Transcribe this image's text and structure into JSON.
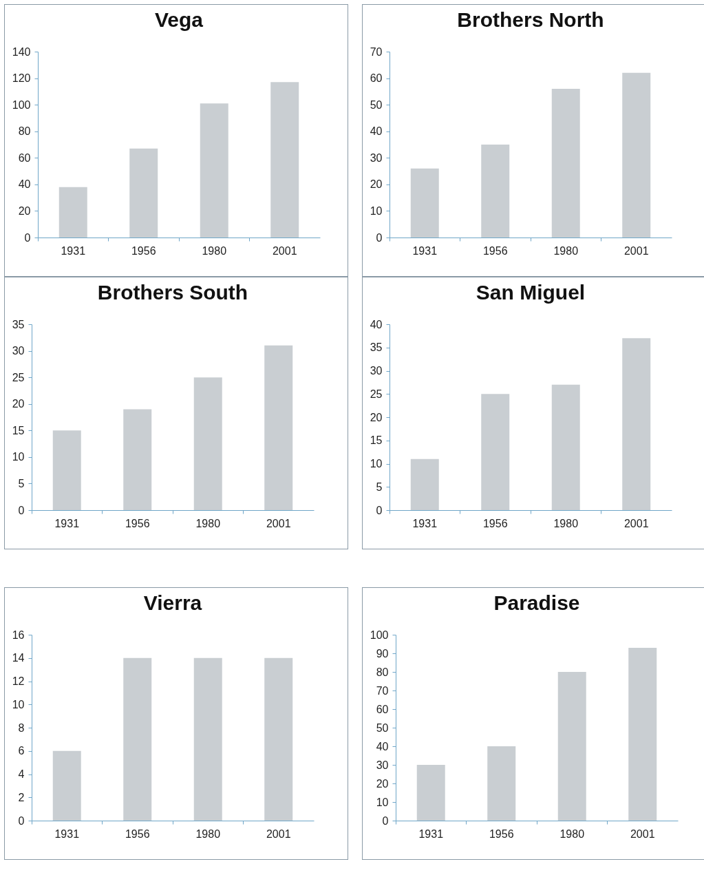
{
  "chart_data": [
    {
      "type": "bar",
      "title": "Vega",
      "categories": [
        "1931",
        "1956",
        "1980",
        "2001"
      ],
      "values": [
        38,
        67,
        101,
        117
      ],
      "color": "#c9ced2",
      "ylim": [
        0,
        140
      ],
      "yticks": [
        0,
        20,
        40,
        60,
        80,
        100,
        120,
        140
      ]
    },
    {
      "type": "bar",
      "title": "Brothers North",
      "categories": [
        "1931",
        "1956",
        "1980",
        "2001"
      ],
      "values": [
        26,
        35,
        56,
        62
      ],
      "color": "#c9ced2",
      "ylim": [
        0,
        70
      ],
      "yticks": [
        0,
        10,
        20,
        30,
        40,
        50,
        60,
        70
      ]
    },
    {
      "type": "bar",
      "title": "Brothers South",
      "categories": [
        "1931",
        "1956",
        "1980",
        "2001"
      ],
      "values": [
        15,
        19,
        25,
        31
      ],
      "color": "#c9ced2",
      "ylim": [
        0,
        35
      ],
      "yticks": [
        0,
        5,
        10,
        15,
        20,
        25,
        30,
        35
      ]
    },
    {
      "type": "bar",
      "title": "San Miguel",
      "categories": [
        "1931",
        "1956",
        "1980",
        "2001"
      ],
      "values": [
        11,
        25,
        27,
        37
      ],
      "color": "#c9ced2",
      "ylim": [
        0,
        40
      ],
      "yticks": [
        0,
        5,
        10,
        15,
        20,
        25,
        30,
        35,
        40
      ]
    },
    {
      "type": "bar",
      "title": "Vierra",
      "categories": [
        "1931",
        "1956",
        "1980",
        "2001"
      ],
      "values": [
        6,
        14,
        14,
        14
      ],
      "color": "#c9ced2",
      "ylim": [
        0,
        16
      ],
      "yticks": [
        0,
        2,
        4,
        6,
        8,
        10,
        12,
        14,
        16
      ]
    },
    {
      "type": "bar",
      "title": "Paradise",
      "categories": [
        "1931",
        "1956",
        "1980",
        "2001"
      ],
      "values": [
        30,
        40,
        80,
        93
      ],
      "color": "#c9ced2",
      "ylim": [
        0,
        100
      ],
      "yticks": [
        0,
        10,
        20,
        30,
        40,
        50,
        60,
        70,
        80,
        90,
        100
      ]
    }
  ]
}
